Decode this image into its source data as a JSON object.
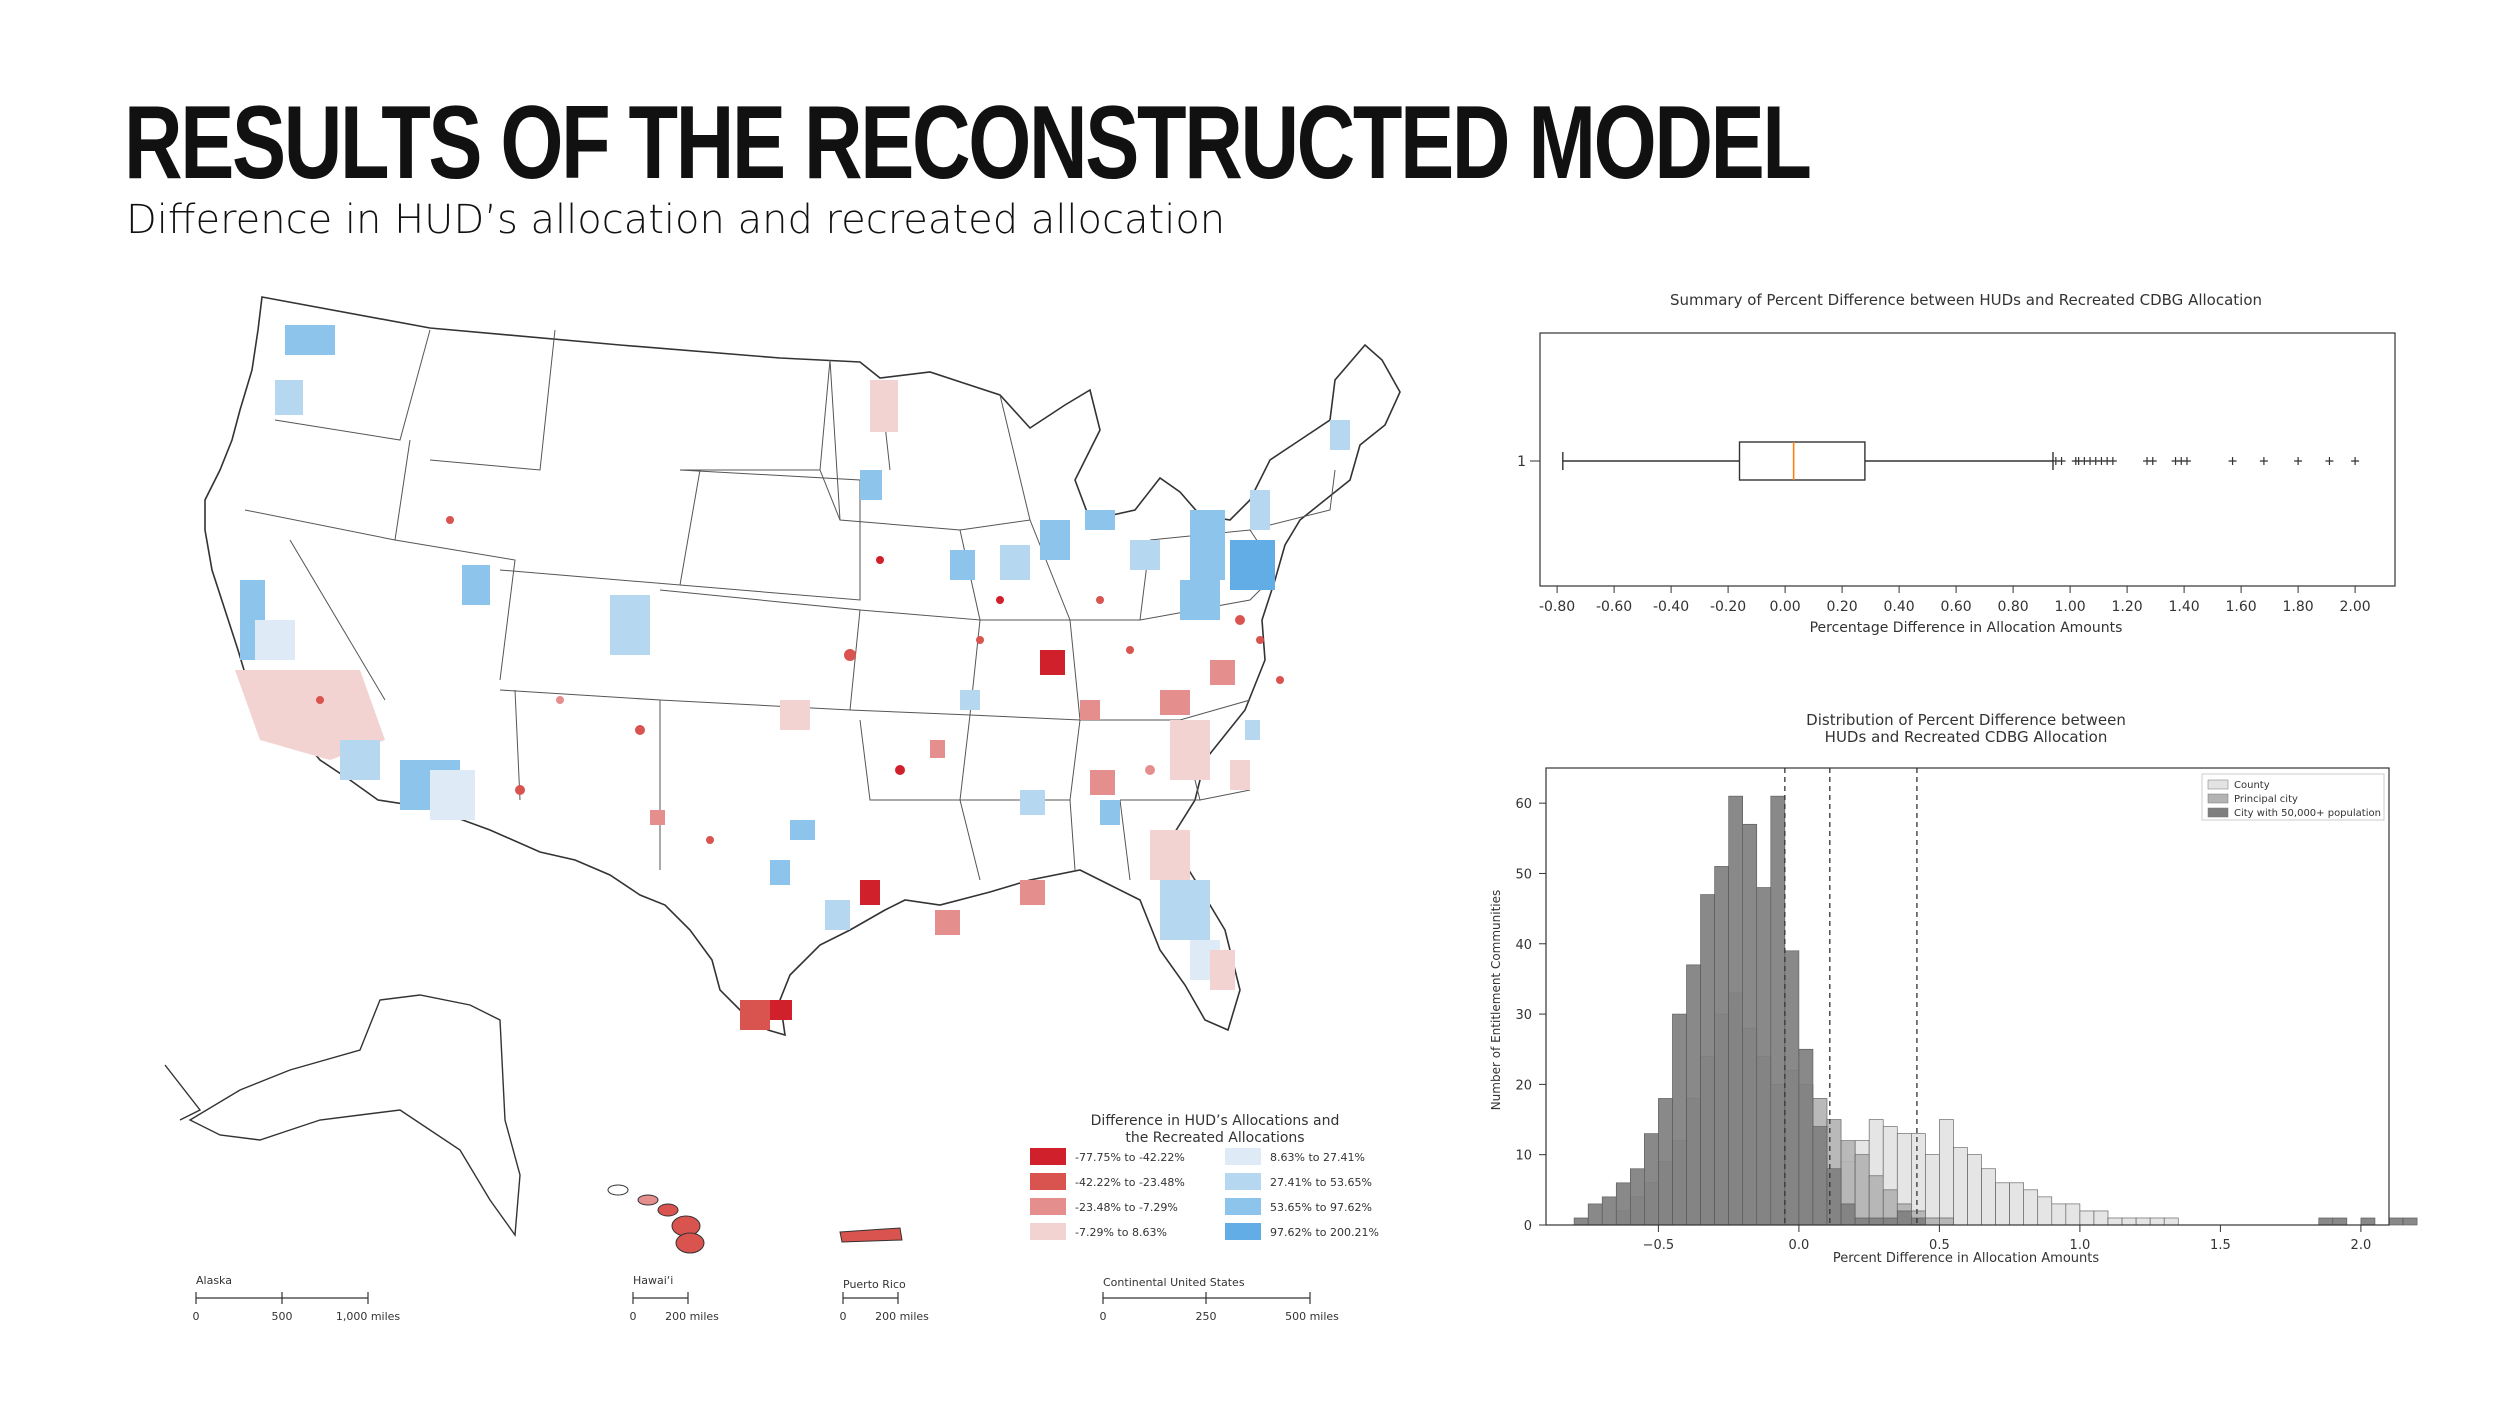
{
  "page": {
    "title": "RESULTS OF THE RECONSTRUCTED MODEL",
    "subtitle": "Difference in HUD’s allocation and recreated allocation"
  },
  "map": {
    "legend_title_line1": "Difference in HUD’s Allocations and",
    "legend_title_line2": "the Recreated Allocations",
    "legend": [
      {
        "label": "-77.75% to -42.22%",
        "color": "#d0202b"
      },
      {
        "label": "-42.22% to -23.48%",
        "color": "#d9534f"
      },
      {
        "label": "-23.48% to -7.29%",
        "color": "#e48f8d"
      },
      {
        "label": "-7.29% to 8.63%",
        "color": "#f2d3d2"
      },
      {
        "label": "8.63% to 27.41%",
        "color": "#deebf7"
      },
      {
        "label": "27.41% to 53.65%",
        "color": "#b6d7f0"
      },
      {
        "label": "53.65% to 97.62%",
        "color": "#8cc4ec"
      },
      {
        "label": "97.62% to 200.21%",
        "color": "#62ade6"
      }
    ],
    "scales": [
      {
        "name": "Alaska",
        "ticks": [
          "0",
          "500",
          "1,000 miles"
        ]
      },
      {
        "name": "Hawai‘i",
        "ticks": [
          "0",
          "200 miles"
        ]
      },
      {
        "name": "Puerto Rico",
        "ticks": [
          "0",
          "200 miles"
        ]
      },
      {
        "name": "Continental United States",
        "ticks": [
          "0",
          "250",
          "500 miles"
        ]
      }
    ]
  },
  "chart_data": [
    {
      "type": "boxplot",
      "title": "Summary of Percent Difference between HUDs and Recreated CDBG Allocation",
      "xlabel": "Percentage Difference in Allocation Amounts",
      "ylabel": "",
      "category": "1",
      "xlim": [
        -0.86,
        2.14
      ],
      "xticks": [
        "-0.80",
        "-0.60",
        "-0.40",
        "-0.20",
        "0.00",
        "0.20",
        "0.40",
        "0.60",
        "0.80",
        "1.00",
        "1.20",
        "1.40",
        "1.60",
        "1.80",
        "2.00"
      ],
      "whisker_low": -0.78,
      "q1": -0.16,
      "median": 0.03,
      "q3": 0.28,
      "whisker_high": 0.94,
      "outliers": [
        0.95,
        0.97,
        1.02,
        1.03,
        1.05,
        1.07,
        1.09,
        1.11,
        1.13,
        1.15,
        1.27,
        1.29,
        1.37,
        1.39,
        1.41,
        1.57,
        1.68,
        1.8,
        1.91,
        2.0
      ],
      "box_color": "#333333",
      "median_color": "#ff7f0e"
    },
    {
      "type": "histogram",
      "title": "Distribution of Percent Difference between HUDs and Recreated CDBG Allocation",
      "title_line1": "Distribution of Percent Difference between",
      "title_line2": "HUDs and Recreated CDBG Allocation",
      "xlabel": "Percent Difference in Allocation Amounts",
      "ylabel": "Number of Entitlement Communities",
      "xlim": [
        -0.9,
        2.1
      ],
      "ylim": [
        0,
        65
      ],
      "xticks": [
        -0.5,
        0.0,
        0.5,
        1.0,
        1.5,
        2.0
      ],
      "yticks": [
        0,
        10,
        20,
        30,
        40,
        50,
        60
      ],
      "vlines": [
        -0.05,
        0.11,
        0.42
      ],
      "series": [
        {
          "name": "County",
          "color": "#e3e3e3",
          "start": -0.05,
          "bin_width": 0.05,
          "values": [
            2,
            2,
            5,
            6,
            9,
            12,
            15,
            14,
            13,
            13,
            10,
            15,
            11,
            10,
            8,
            6,
            6,
            5,
            4,
            3,
            3,
            2,
            2,
            1,
            1,
            1,
            1,
            1
          ]
        },
        {
          "name": "Principal city",
          "color": "#b3b3b3",
          "start": -0.65,
          "bin_width": 0.05,
          "values": [
            2,
            4,
            6,
            9,
            12,
            18,
            24,
            30,
            33,
            28,
            24,
            20,
            22,
            20,
            18,
            15,
            12,
            10,
            7,
            5,
            3,
            2,
            1,
            1
          ]
        },
        {
          "name": "City with 50,000+ population",
          "color": "#7f7f7f",
          "start": -0.8,
          "bin_width": 0.05,
          "values": [
            1,
            3,
            4,
            6,
            8,
            13,
            18,
            30,
            37,
            47,
            51,
            61,
            57,
            48,
            61,
            39,
            25,
            14,
            8,
            3,
            1,
            1,
            1,
            2,
            1,
            0,
            0,
            0,
            0,
            0,
            0,
            0,
            0,
            0,
            0,
            0,
            0,
            0,
            0,
            0,
            0,
            0,
            0,
            0,
            0,
            0,
            0,
            0,
            0,
            0,
            0,
            0,
            0,
            1,
            1,
            0,
            1,
            0,
            1,
            1
          ]
        }
      ]
    }
  ]
}
